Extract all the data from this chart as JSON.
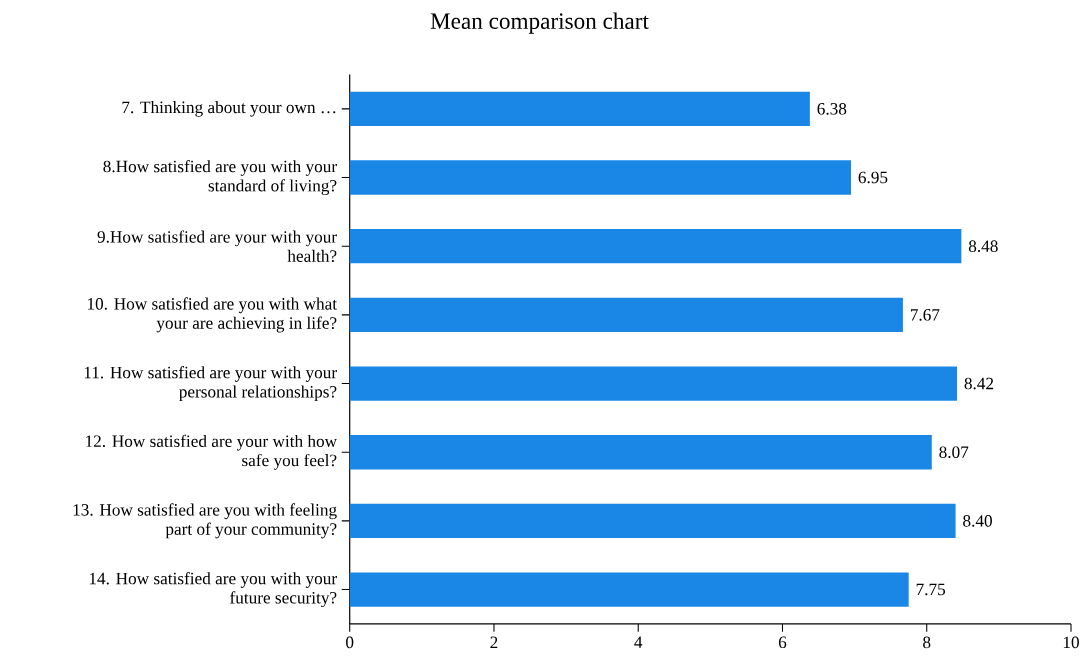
{
  "chart_data": {
    "type": "bar",
    "orientation": "horizontal",
    "title": "Mean comparison chart",
    "categories": [
      "7. Thinking about your own …",
      "8.How satisfied are you with your standard of living?",
      "9.How satisfied are your with your health?",
      "10. How satisfied are you with what your are achieving in life?",
      "11. How satisfied are your with your personal relationships?",
      "12. How satisfied are your with how safe you feel?",
      "13. How satisfied are you with feeling part of your community?",
      "14. How satisfied are you with your future security?"
    ],
    "values": [
      6.38,
      6.95,
      8.48,
      7.67,
      8.42,
      8.07,
      8.4,
      7.75
    ],
    "value_labels": [
      "6.38",
      "6.95",
      "8.48",
      "7.67",
      "8.42",
      "8.07",
      "8.40",
      "7.75"
    ],
    "color": "#1a87e6",
    "xlim": [
      0,
      10
    ],
    "xticks": [
      0,
      2,
      4,
      6,
      8,
      10
    ],
    "grid": false
  }
}
